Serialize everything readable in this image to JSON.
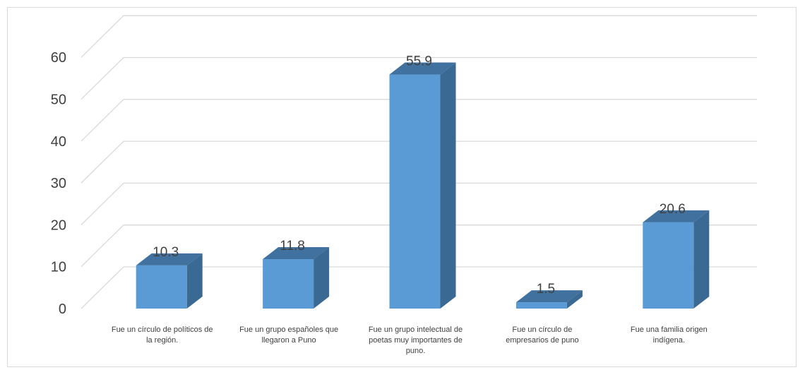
{
  "chart_data": {
    "type": "bar",
    "categories": [
      "Fue un círculo de políticos de la región.",
      "Fue un grupo españoles que llegaron a Puno",
      "Fue un grupo intelectual de poetas muy importantes de puno.",
      "Fue un círculo de empresarios de puno",
      "Fue una familia origen indígena."
    ],
    "values": [
      10.3,
      11.8,
      55.9,
      1.5,
      20.6
    ],
    "data_labels": [
      "10.3",
      "11.8",
      "55.9",
      "1.5",
      "20.6"
    ],
    "category_label_lines": [
      [
        "Fue un círculo de políticos de",
        "la región."
      ],
      [
        "Fue un grupo españoles que",
        "llegaron a Puno"
      ],
      [
        "Fue un grupo intelectual de",
        "poetas muy importantes de",
        "puno."
      ],
      [
        "Fue un círculo de",
        "empresarios de puno"
      ],
      [
        "Fue una familia origen",
        "indígena."
      ]
    ],
    "y_ticks": [
      "0",
      "10",
      "20",
      "30",
      "40",
      "50",
      "60"
    ],
    "ylim": [
      0,
      60
    ],
    "grid": true,
    "three_d": true,
    "colors": {
      "bar_front": "#5b9bd5",
      "bar_top": "#41729f",
      "bar_side": "#3a6a94",
      "gridline": "#d9d9d9",
      "text": "#404040"
    }
  }
}
